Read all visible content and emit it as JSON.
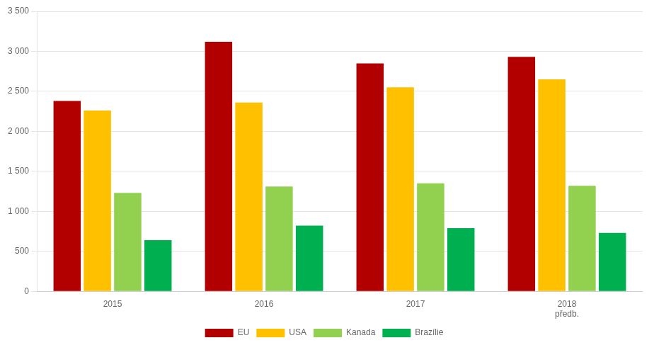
{
  "chart_data": {
    "type": "bar",
    "categories": [
      "2015",
      "2016",
      "2017",
      "2018\npředb."
    ],
    "series": [
      {
        "name": "EU",
        "color": "#b20000",
        "values": [
          2380,
          3120,
          2850,
          2930
        ]
      },
      {
        "name": "USA",
        "color": "#ffc000",
        "values": [
          2260,
          2360,
          2550,
          2650
        ]
      },
      {
        "name": "Kanada",
        "color": "#92d050",
        "values": [
          1230,
          1310,
          1350,
          1320
        ]
      },
      {
        "name": "Brazílie",
        "color": "#00b050",
        "values": [
          640,
          820,
          790,
          730
        ]
      }
    ],
    "ylim": [
      0,
      3500
    ],
    "yticks": [
      0,
      500,
      {
        "value": 1000,
        "label": "1 000"
      },
      {
        "value": 1500,
        "label": "1 500"
      },
      {
        "value": 2000,
        "label": "2 000"
      },
      {
        "value": 2500,
        "label": "2 500"
      },
      {
        "value": 3000,
        "label": "3 000"
      },
      {
        "value": 3500,
        "label": "3 500"
      }
    ],
    "grid": true,
    "legend": "bottom"
  }
}
